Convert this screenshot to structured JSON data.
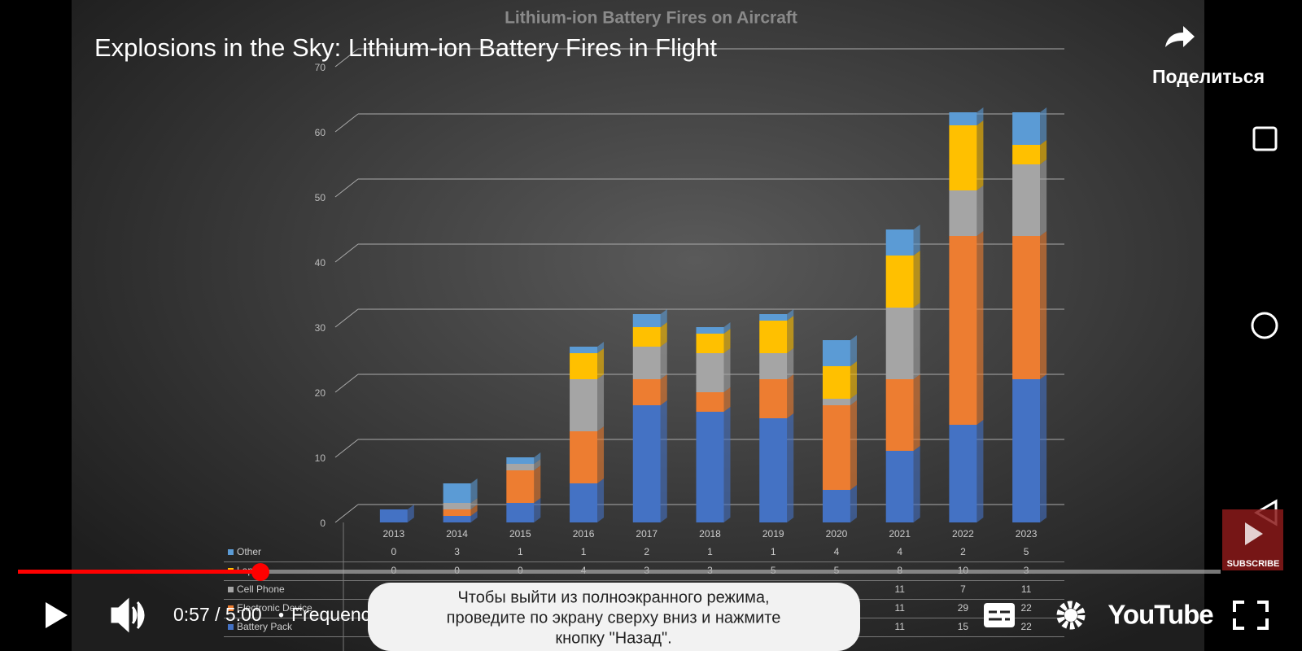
{
  "video": {
    "title": "Explosions in the Sky: Lithium-ion Battery Fires in Flight",
    "share_label": "Поделиться",
    "time": "0:57 / 5:00",
    "separator": "•",
    "chapter": "Frequency of Fires on Aircraft",
    "toast": [
      "Чтобы выйти из полноэкранного режима,",
      "проведите по экрану сверху вниз и нажмите",
      "кнопку \"Назад\"."
    ],
    "brand": "YouTube",
    "subscribe": "SUBSCRIBE"
  },
  "chart_data": {
    "type": "bar",
    "stacked": true,
    "title": "Lithium-ion Battery Fires on Aircraft",
    "categories": [
      "2013",
      "2014",
      "2015",
      "2016",
      "2017",
      "2018",
      "2019",
      "2020",
      "2021",
      "2022",
      "2023"
    ],
    "series": [
      {
        "name": "Battery Pack",
        "color": "#4472c4",
        "values": [
          2,
          1,
          3,
          6,
          18,
          17,
          16,
          5,
          11,
          15,
          22
        ]
      },
      {
        "name": "Electronic Device",
        "color": "#ed7d31",
        "values": [
          0,
          1,
          5,
          8,
          4,
          3,
          6,
          13,
          11,
          29,
          22
        ]
      },
      {
        "name": "Cell Phone",
        "color": "#a5a5a5",
        "values": [
          0,
          1,
          1,
          8,
          5,
          6,
          4,
          1,
          11,
          7,
          11
        ]
      },
      {
        "name": "Laptop",
        "color": "#ffc000",
        "values": [
          0,
          0,
          0,
          4,
          3,
          3,
          5,
          5,
          8,
          10,
          3
        ]
      },
      {
        "name": "Other",
        "color": "#5b9bd5",
        "values": [
          0,
          3,
          1,
          1,
          2,
          1,
          1,
          4,
          4,
          2,
          5
        ]
      }
    ],
    "ylim": [
      0,
      70
    ],
    "yticks": [
      0,
      10,
      20,
      30,
      40,
      50,
      60,
      70
    ],
    "grid": true
  }
}
